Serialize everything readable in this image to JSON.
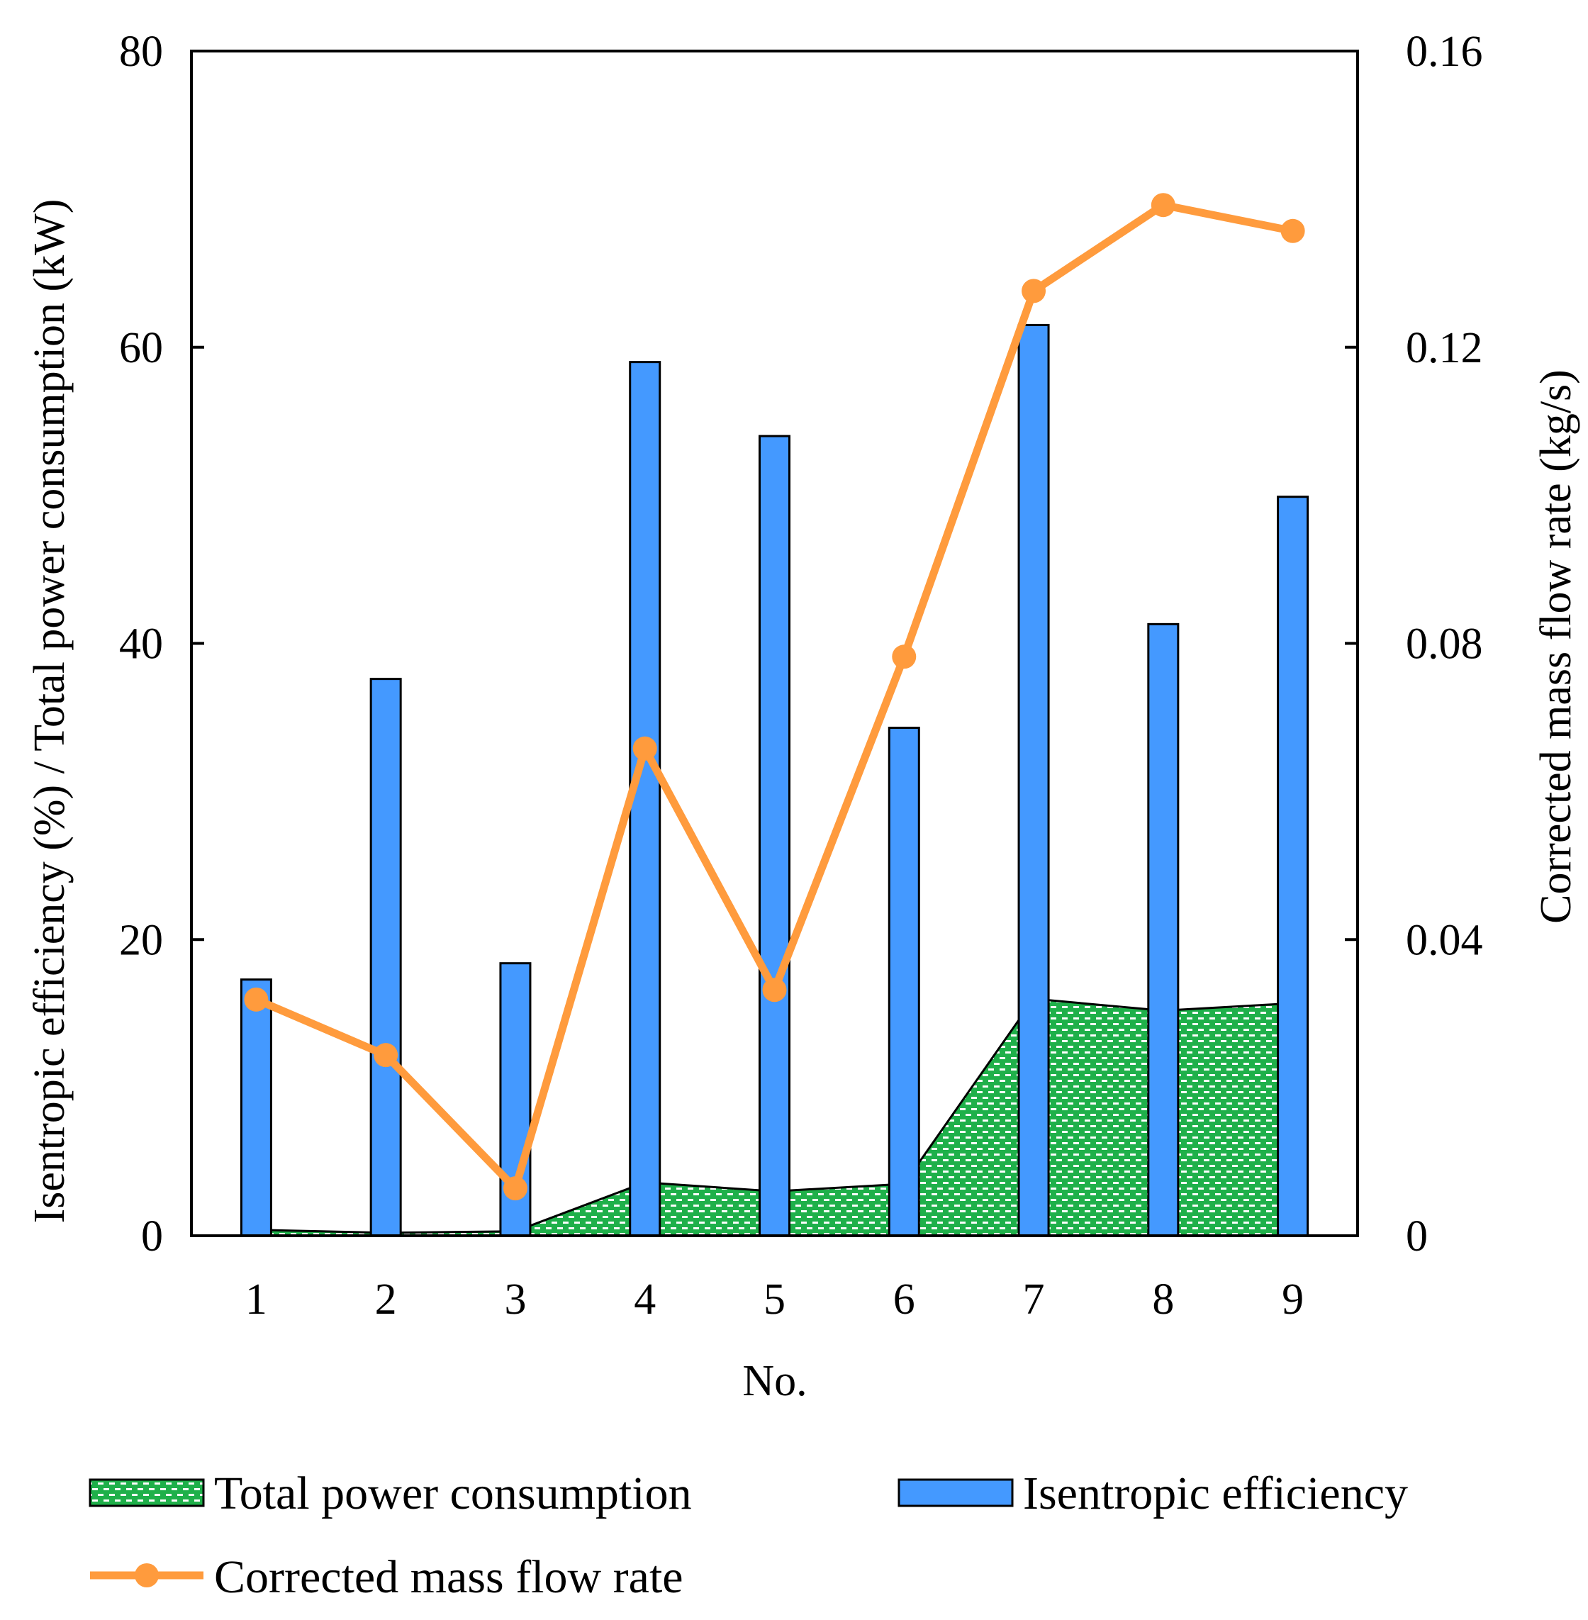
{
  "chart_data": {
    "type": "bar",
    "categories": [
      "1",
      "2",
      "3",
      "4",
      "5",
      "6",
      "7",
      "8",
      "9"
    ],
    "xlabel": "No.",
    "ylabel_left": "Isentropic efficiency (%) / Total power consumption (kW)",
    "ylabel_right": "Corrected mass flow rate (kg/s)",
    "ylim_left": [
      0,
      80
    ],
    "yticks_left": [
      0,
      20,
      40,
      60,
      80
    ],
    "ytick_labels_left": [
      "0",
      "20",
      "40",
      "60",
      "80"
    ],
    "ylim_right": [
      0,
      0.16
    ],
    "yticks_right": [
      0,
      0.04,
      0.08,
      0.12,
      0.16
    ],
    "ytick_labels_right": [
      "0",
      "0.04",
      "0.08",
      "0.12",
      "0.16"
    ],
    "grid": false,
    "legend_position": "bottom",
    "series": [
      {
        "name": "Total power consumption",
        "type": "area",
        "axis": "left",
        "color": "#1fb04a",
        "pattern": "dotted",
        "values": [
          0.4,
          0.2,
          0.3,
          3.6,
          3.0,
          3.5,
          16.0,
          15.2,
          15.7
        ]
      },
      {
        "name": "Isentropic efficiency",
        "type": "bar",
        "axis": "left",
        "color": "#4499ff",
        "values": [
          17.3,
          37.6,
          18.4,
          59.0,
          54.0,
          34.3,
          61.5,
          41.3,
          49.9
        ]
      },
      {
        "name": "Corrected mass flow rate",
        "type": "line",
        "axis": "right",
        "color": "#ff9b3d",
        "marker": "circle",
        "values": [
          0.0319,
          0.0244,
          0.0064,
          0.0658,
          0.0332,
          0.0782,
          0.1276,
          0.1392,
          0.1357
        ]
      }
    ]
  }
}
